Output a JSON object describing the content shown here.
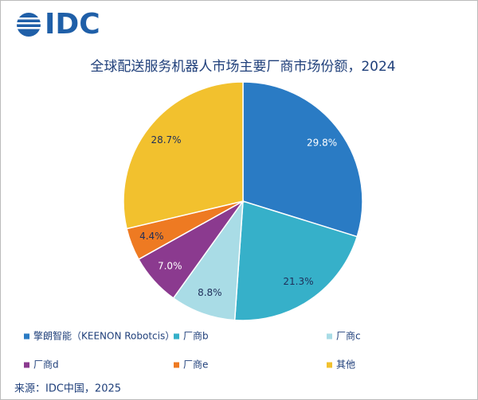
{
  "logo": "IDC",
  "chart_data": {
    "type": "pie",
    "title": "全球配送服务机器人市场主要厂商市场份额，2024",
    "categories": [
      "擎朗智能（KEENON Robotcis）",
      "厂商b",
      "厂商c",
      "厂商d",
      "厂商e",
      "其他"
    ],
    "values": [
      29.8,
      21.3,
      8.8,
      7.0,
      4.4,
      28.7
    ],
    "value_labels": [
      "29.8%",
      "21.3%",
      "8.8%",
      "7.0%",
      "4.4%",
      "28.7%"
    ],
    "colors": [
      "#2a7bc4",
      "#36b0c9",
      "#a9dce6",
      "#8b3a8f",
      "#ee7a22",
      "#f2c12e"
    ],
    "source": "来源：IDC中国，2025"
  }
}
